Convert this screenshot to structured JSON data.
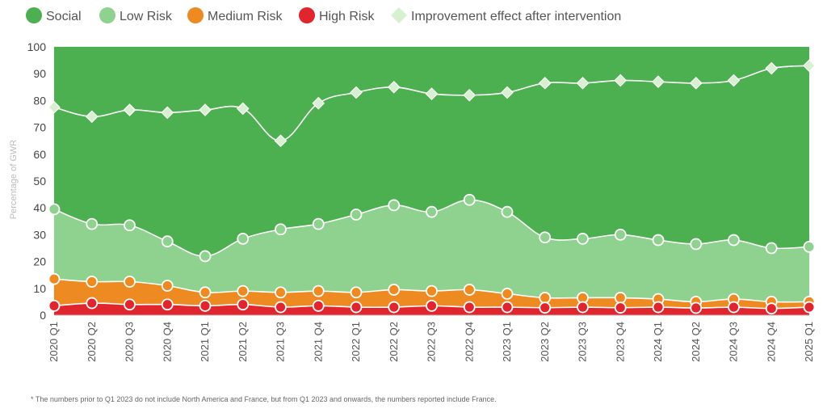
{
  "chart_data": {
    "type": "area",
    "title": "",
    "ylabel": "Percentage of GWR",
    "xlabel": "",
    "ylim": [
      0,
      100
    ],
    "yticks": [
      0,
      10,
      20,
      30,
      40,
      50,
      60,
      70,
      80,
      90,
      100
    ],
    "categories": [
      "2020 Q1",
      "2020 Q2",
      "2020 Q3",
      "2020 Q4",
      "2021 Q1",
      "2021 Q2",
      "2021 Q3",
      "2021 Q4",
      "2022 Q1",
      "2022 Q2",
      "2022 Q3",
      "2022 Q4",
      "2023 Q1",
      "2023 Q2",
      "2023 Q3",
      "2023 Q4",
      "2024 Q1",
      "2024 Q2",
      "2024 Q3",
      "2024 Q4",
      "2025 Q1"
    ],
    "series": [
      {
        "name": "Social",
        "color": "#4caf50",
        "marker": "none",
        "values": [
          100,
          100,
          100,
          100,
          100,
          100,
          100,
          100,
          100,
          100,
          100,
          100,
          100,
          100,
          100,
          100,
          100,
          100,
          100,
          100,
          100
        ]
      },
      {
        "name": "Low Risk",
        "color": "#8fd18f",
        "marker": "circle",
        "values": [
          39.5,
          34,
          33.5,
          27.5,
          22,
          28.5,
          32,
          34,
          37.5,
          41,
          38.5,
          43,
          38.5,
          29,
          28.5,
          30,
          28,
          26.5,
          28,
          25,
          25.5
        ]
      },
      {
        "name": "Medium Risk",
        "color": "#ee8a22",
        "marker": "circle",
        "values": [
          13.5,
          12.5,
          12.5,
          11,
          8.5,
          9,
          8.5,
          9,
          8.5,
          9.5,
          9,
          9.5,
          8,
          6.5,
          6.5,
          6.5,
          6,
          5,
          6,
          5,
          5
        ]
      },
      {
        "name": "High Risk",
        "color": "#e0252e",
        "marker": "circle",
        "values": [
          3.5,
          4.5,
          4,
          4,
          3.5,
          4,
          3,
          3.5,
          3,
          3,
          3.5,
          3,
          3,
          2.8,
          3,
          2.8,
          3,
          2.7,
          3,
          2.5,
          3
        ]
      },
      {
        "name": "Improvement effect after intervention",
        "color": "#d6f0d0",
        "marker": "diamond",
        "values": [
          77.5,
          74,
          76.5,
          75.5,
          76.5,
          77,
          65,
          79,
          83,
          85,
          82.5,
          82,
          83,
          86.5,
          86.5,
          87.5,
          87,
          86.5,
          87.5,
          92,
          93
        ]
      }
    ],
    "legend_position": "top-left",
    "grid": true,
    "footnote": "* The numbers prior to Q1 2023 do not include North America and France, but from Q1 2023 and onwards, the numbers reported include France."
  }
}
